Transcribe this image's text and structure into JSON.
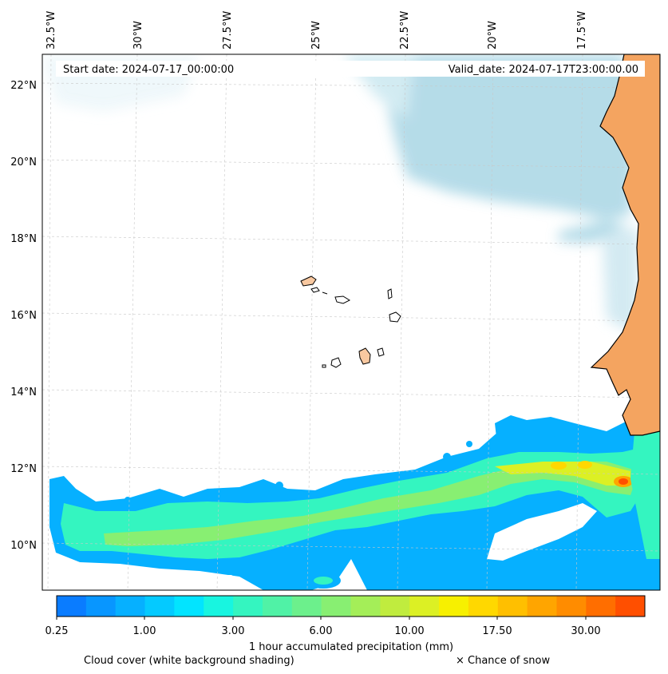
{
  "map": {
    "header": {
      "start_date": "Start date: 2024-07-17_00:00:00",
      "valid_date": "Valid_date: 2024-07-17T23:00:00.00"
    },
    "lon_labels": [
      "32.5°W",
      "30°W",
      "27.5°W",
      "25°W",
      "22.5°W",
      "20°W",
      "17.5°W"
    ],
    "lat_labels": [
      "22°N",
      "20°N",
      "18°N",
      "16°N",
      "14°N",
      "12°N",
      "10°N"
    ],
    "extent": {
      "lon_min": -32.5,
      "lon_max": -15.7,
      "lat_min": 8.9,
      "lat_max": 22.8
    },
    "colors": {
      "land": "#f4a460",
      "cloud": "#add8e6",
      "ocean": "#ffffff"
    }
  },
  "colorbar": {
    "ticks": [
      "0.25",
      "1.00",
      "3.00",
      "6.00",
      "10.00",
      "17.50",
      "30.00"
    ],
    "title": "1 hour accumulated precipitation (mm)",
    "colors": [
      "#0a7cff",
      "#0896ff",
      "#06b0ff",
      "#04caff",
      "#02e4ff",
      "#18f5e0",
      "#34f5c0",
      "#50f2a6",
      "#6cf08c",
      "#88ef72",
      "#a4ee58",
      "#c0ec3e",
      "#dcf024",
      "#f7f000",
      "#ffd800",
      "#ffbf00",
      "#ffa500",
      "#ff8c00",
      "#ff6e00",
      "#ff4f00"
    ]
  },
  "legend": {
    "cloud": "Cloud cover (white background shading)",
    "snow": "× Chance of snow"
  }
}
